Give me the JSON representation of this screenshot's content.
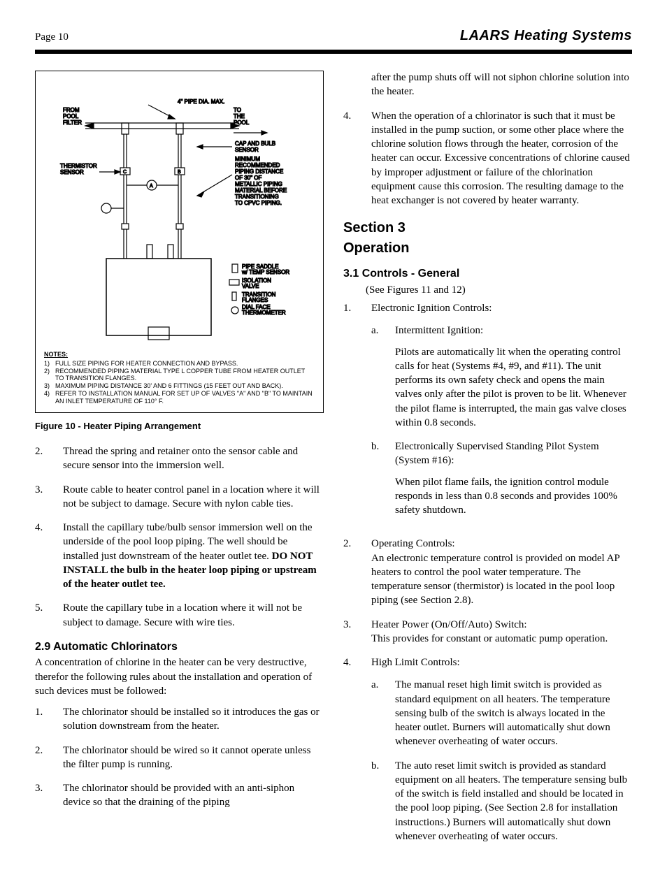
{
  "header": {
    "page_label": "Page 10",
    "brand": "LAARS Heating Systems"
  },
  "figure": {
    "caption": "Figure 10 - Heater Piping Arrangement",
    "top_label": "4\" PIPE DIA. MAX.",
    "labels": {
      "from_pool_filter": "FROM\nPOOL\nFILTER",
      "to_the_pool": "TO\nTHE\nPOOL",
      "cap_and_bulb": "CAP AND BULB\nSENSOR",
      "min_piping": "MINIMUM\nRECOMMENDED\nPIPING DISTANCE\nOF 30\" OF\nMETALLIC PIPING\nMATERIAL BEFORE\nTRANSITIONING\nTO CPVC PIPING.",
      "thermistor": "THERMISTOR\nSENSOR"
    },
    "legend": [
      {
        "label": "PIPE SADDLE\nw/ TEMP SENSOR"
      },
      {
        "label": "ISOLATION\nVALVE"
      },
      {
        "label": "TRANSITION\nFLANGES"
      },
      {
        "label": "DIAL FACE\nTHERMOMETER"
      }
    ],
    "notes_heading": "NOTES:",
    "notes": [
      "FULL SIZE PIPING FOR HEATER CONNECTION AND BYPASS.",
      "RECOMMENDED PIPING MATERIAL TYPE L COPPER TUBE FROM HEATER OUTLET TO TRANSITION FLANGES.",
      "MAXIMUM PIPING DISTANCE 30' AND 6 FITTINGS (15 FEET OUT AND BACK).",
      "REFER TO INSTALLATION MANUAL FOR SET UP OF VALVES \"A\" AND \"B\" TO MAINTAIN AN INLET TEMPERATURE OF 110° F."
    ]
  },
  "left_list_start2": [
    "Thread the spring and retainer onto the sensor cable and secure sensor into the immersion well.",
    "Route cable to heater control panel in a location where it will not be subject to damage. Secure with nylon cable ties.",
    "Install the capillary tube/bulb sensor immersion well on the underside of the pool loop piping.  The well should be installed just downstream of the heater outlet tee. <b>DO NOT INSTALL the bulb in the heater loop piping or upstream of the heater outlet tee.</b>",
    "Route the capillary tube in a location where it will not be subject to damage.  Secure with wire ties."
  ],
  "sec29": {
    "heading": "2.9  Automatic Chlorinators",
    "intro": "A concentration of chlorine in the heater can be very destructive, therefor the following rules about the installation and operation of such devices must be followed:",
    "items": [
      "The chlorinator should be installed so it introduces the gas or solution downstream from the heater.",
      "The chlorinator should be wired so it cannot operate unless the filter pump is running.",
      "The chlorinator should be provided with an anti-siphon device so that the draining of the piping"
    ]
  },
  "right_top": [
    "after the pump shuts off will not siphon chlorine solution into the heater.",
    "When the operation of a chlorinator is such that it must be installed in the pump suction, or some other place where the chlorine solution flows through the heater, corrosion of the heater can occur. Excessive concentrations of chlorine caused by improper adjustment or failure of the chlorination equipment cause this corrosion. The resulting damage to the heat exchanger is not covered by heater warranty."
  ],
  "section3": {
    "title_a": "Section 3",
    "title_b": "Operation"
  },
  "sec31": {
    "heading": "3.1  Controls - General",
    "sub": "(See Figures 11 and 12)",
    "item1": {
      "lead": "Electronic Ignition Controls:",
      "a_lead": "Intermittent Ignition:",
      "a_body": "Pilots are automatically lit when the operating control calls for heat (Systems #4, #9, and #11). The unit performs its own safety check and opens the main valves only after the pilot is proven to be lit. Whenever the pilot flame is interrupted, the main gas valve closes within 0.8 seconds.",
      "b_lead": "Electronically Supervised Standing Pilot System (System #16):",
      "b_body": "When pilot flame fails, the ignition control module responds in less than 0.8 seconds and provides 100% safety shutdown."
    },
    "item2": "Operating Controls:\nAn electronic temperature control is provided on model AP heaters to control the pool water temperature. The temperature sensor (thermistor) is located in the pool loop piping (see Section 2.8).",
    "item3": "Heater Power (On/Off/Auto) Switch:\nThis provides for constant or automatic pump operation.",
    "item4": {
      "lead": "High Limit Controls:",
      "a": "The manual reset high limit switch is provided as standard equipment on all heaters. The temperature sensing bulb of the switch is always located in the heater outlet. Burners will automatically shut down whenever overheating of water occurs.",
      "b": "The auto reset limit switch is provided as standard equipment on all heaters.  The temperature sensing bulb of the switch is field installed and should be located in the pool loop piping.  (See Section 2.8 for installation instructions.)  Burners will automatically shut down whenever overheating of water occurs."
    }
  }
}
